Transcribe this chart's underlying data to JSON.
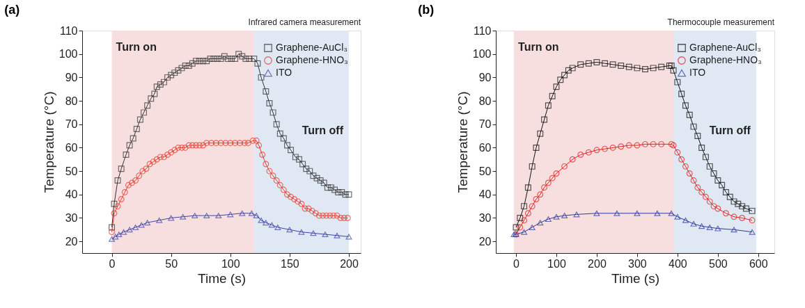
{
  "chart_data": [
    {
      "type": "line",
      "title": "(a)",
      "subtitle": "Infrared camera measurement",
      "xlabel": "Time (s)",
      "ylabel": "Temperature (°C)",
      "xlim": [
        -25,
        210
      ],
      "xticks": [
        0,
        50,
        100,
        150,
        200
      ],
      "ylim": [
        15,
        110
      ],
      "yticks": [
        20,
        30,
        40,
        50,
        60,
        70,
        80,
        90,
        100,
        110
      ],
      "grid": false,
      "legend": "top right",
      "line_style": "solid",
      "bands": [
        {
          "axis": "x",
          "from": 0,
          "to": 120,
          "label": "Turn on",
          "color": "#f7dfe0"
        },
        {
          "axis": "x",
          "from": 120,
          "to": 200,
          "label": "Turn off",
          "color": "#dfe8f3"
        }
      ],
      "series": [
        {
          "name": "Graphene-AuCl₃",
          "color": "#333333",
          "marker": "square",
          "x": [
            0,
            2,
            5,
            8,
            12,
            15,
            18,
            21,
            24,
            27,
            30,
            33,
            36,
            38,
            41,
            44,
            47,
            50,
            53,
            56,
            59,
            62,
            65,
            68,
            71,
            74,
            77,
            80,
            83,
            86,
            89,
            92,
            95,
            98,
            101,
            104,
            107,
            110,
            113,
            116,
            120,
            123,
            126,
            130,
            133,
            136,
            139,
            142,
            145,
            148,
            151,
            155,
            158,
            161,
            164,
            167,
            170,
            173,
            176,
            179,
            182,
            185,
            188,
            191,
            194,
            197,
            200
          ],
          "values": [
            26,
            36,
            46,
            51,
            57,
            61,
            64,
            68,
            72,
            75,
            78,
            81,
            83,
            86,
            87,
            88,
            90,
            91,
            92,
            93,
            94,
            95,
            95,
            96,
            97,
            97,
            97,
            97,
            98,
            98,
            98,
            98,
            99,
            98,
            98,
            98,
            100,
            99,
            98,
            98,
            98,
            96,
            90,
            84,
            79,
            75,
            70,
            66,
            64,
            61,
            59,
            56,
            55,
            53,
            51,
            50,
            48,
            47,
            46,
            45,
            43,
            43,
            42,
            41,
            41,
            40,
            40
          ]
        },
        {
          "name": "Graphene-HNO₃",
          "color": "#e8392b",
          "marker": "circle",
          "x": [
            0,
            2,
            5,
            8,
            11,
            14,
            17,
            20,
            23,
            26,
            29,
            32,
            35,
            38,
            41,
            44,
            47,
            50,
            53,
            56,
            59,
            62,
            65,
            68,
            71,
            74,
            77,
            80,
            84,
            88,
            92,
            96,
            100,
            104,
            108,
            112,
            115,
            119,
            122,
            124,
            127,
            130,
            133,
            136,
            139,
            142,
            145,
            148,
            151,
            154,
            157,
            160,
            163,
            166,
            169,
            172,
            175,
            178,
            181,
            184,
            187,
            190,
            193,
            196,
            199
          ],
          "values": [
            24,
            32,
            35,
            38,
            41,
            44,
            45,
            46,
            48,
            50,
            51,
            53,
            54,
            55,
            56,
            56,
            57,
            58,
            59,
            60,
            60,
            60,
            61,
            61,
            61,
            61,
            61,
            62,
            62,
            62,
            62,
            62,
            62,
            62,
            62,
            62,
            62,
            63,
            63,
            61,
            57,
            53,
            50,
            48,
            46,
            44,
            42,
            40,
            39,
            38,
            37,
            36,
            34,
            34,
            33,
            32,
            31,
            31,
            31,
            31,
            31,
            31,
            30,
            30,
            30
          ]
        },
        {
          "name": "ITO",
          "color": "#3d44a8",
          "marker": "triangle",
          "x": [
            0,
            3,
            6,
            10,
            15,
            20,
            25,
            30,
            40,
            50,
            60,
            70,
            80,
            90,
            100,
            110,
            118,
            122,
            126,
            130,
            135,
            140,
            150,
            160,
            170,
            180,
            190,
            200
          ],
          "values": [
            21,
            22,
            23,
            24,
            25,
            26,
            27,
            28,
            29,
            30,
            30.5,
            31,
            31,
            31,
            31.5,
            32,
            32,
            31,
            29,
            28,
            27,
            26,
            25,
            24,
            23.5,
            23,
            22.5,
            22
          ]
        }
      ]
    },
    {
      "type": "line",
      "title": "(b)",
      "subtitle": "Thermocouple measurement",
      "xlabel": "Time (s)",
      "ylabel": "Temperature (°C)",
      "xlim": [
        -50,
        640
      ],
      "xticks": [
        0,
        100,
        200,
        300,
        400,
        500,
        600
      ],
      "ylim": [
        15,
        110
      ],
      "yticks": [
        20,
        30,
        40,
        50,
        60,
        70,
        80,
        90,
        100,
        110
      ],
      "grid": false,
      "legend": "top right",
      "line_style": "solid",
      "bands": [
        {
          "axis": "x",
          "from": -5,
          "to": 390,
          "label": "Turn on",
          "color": "#f7dfe0"
        },
        {
          "axis": "x",
          "from": 390,
          "to": 595,
          "label": "Turn off",
          "color": "#dfe8f3"
        }
      ],
      "series": [
        {
          "name": "Graphene-AuCl₃",
          "color": "#111111",
          "marker": "square",
          "x": [
            0,
            10,
            20,
            30,
            40,
            50,
            60,
            70,
            80,
            90,
            100,
            110,
            120,
            130,
            140,
            160,
            180,
            200,
            220,
            240,
            260,
            280,
            300,
            320,
            340,
            360,
            380,
            385,
            390,
            400,
            410,
            420,
            430,
            440,
            450,
            460,
            470,
            480,
            490,
            500,
            510,
            520,
            530,
            540,
            550,
            560,
            570,
            585
          ],
          "values": [
            26,
            30,
            35,
            43,
            52,
            60,
            66,
            72,
            78,
            82,
            86,
            89,
            91,
            93,
            94,
            95.5,
            96,
            96.5,
            96,
            95.5,
            95,
            94.5,
            94,
            93.5,
            94,
            94.5,
            95,
            95,
            93,
            88,
            83,
            78,
            74,
            69,
            65,
            60,
            56,
            52,
            49,
            46,
            44,
            41,
            39,
            37,
            36,
            35,
            34,
            33
          ]
        },
        {
          "name": "Graphene-HNO₃",
          "color": "#e31e1e",
          "marker": "circle",
          "x": [
            0,
            10,
            20,
            30,
            40,
            50,
            60,
            70,
            80,
            90,
            100,
            120,
            140,
            160,
            180,
            200,
            220,
            240,
            260,
            280,
            300,
            320,
            340,
            360,
            385,
            390,
            400,
            410,
            420,
            430,
            440,
            450,
            460,
            470,
            480,
            490,
            500,
            520,
            540,
            560,
            585
          ],
          "values": [
            23,
            26,
            29,
            32,
            35,
            38,
            40,
            43,
            45,
            47,
            49,
            52,
            55,
            57,
            58,
            59,
            59.5,
            60,
            60.5,
            61,
            61,
            61.5,
            61.5,
            61.5,
            61.5,
            61,
            58,
            55,
            52,
            49,
            46,
            43,
            41,
            39,
            37,
            35,
            34,
            32,
            30.5,
            30,
            29
          ]
        },
        {
          "name": "ITO",
          "color": "#2e3a9c",
          "marker": "triangle",
          "x": [
            -5,
            0,
            20,
            40,
            60,
            80,
            100,
            120,
            150,
            200,
            250,
            300,
            350,
            385,
            400,
            420,
            440,
            460,
            480,
            500,
            540,
            585
          ],
          "values": [
            23,
            23,
            24,
            26,
            28,
            29.5,
            30.5,
            31,
            31.5,
            32,
            32,
            32,
            32,
            32,
            30.5,
            29,
            27.5,
            26.5,
            26,
            25.5,
            25,
            24
          ]
        }
      ]
    }
  ]
}
